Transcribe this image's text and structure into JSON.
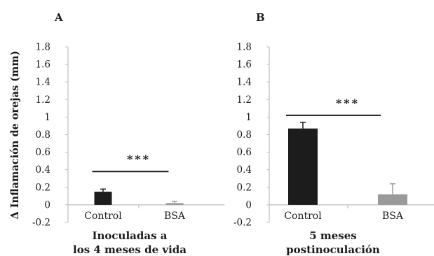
{
  "ylabel": "Δ Inflamación de orejas (mm)",
  "panels": [
    {
      "letter": "A",
      "caption_lines": [
        "Inoculadas a",
        "los 4 meses de vida"
      ],
      "significance": "***"
    },
    {
      "letter": "B",
      "caption_lines": [
        "5 meses",
        "postinoculación"
      ],
      "significance": "***"
    }
  ],
  "colors": {
    "control": "#1c1c1c",
    "bsa": "#9a9a9a",
    "axis": "#bdbdbd",
    "ink": "#1a1a1a"
  },
  "chart_data": [
    {
      "type": "bar",
      "title": "Inoculadas a los 4 meses de vida",
      "categories": [
        "Control",
        "BSA"
      ],
      "values": [
        0.15,
        0.02
      ],
      "errors": [
        0.03,
        0.02
      ],
      "ylabel": "Δ Inflamación de orejas (mm)",
      "yticks": [
        "-0.2",
        "0",
        "0.2",
        "0.4",
        "0.6",
        "0.8",
        "1",
        "1.2",
        "1.4",
        "1.6",
        "1.8"
      ],
      "ylim": [
        -0.2,
        1.8
      ],
      "significance_y": 0.38,
      "grid": false
    },
    {
      "type": "bar",
      "title": "5 meses postinoculación",
      "categories": [
        "Control",
        "BSA"
      ],
      "values": [
        0.87,
        0.12
      ],
      "errors": [
        0.07,
        0.12
      ],
      "yticks": [
        "-0.2",
        "0",
        "0.2",
        "0.4",
        "0.6",
        "0.8",
        "1",
        "1.2",
        "1.4",
        "1.6",
        "1.8"
      ],
      "ylim": [
        -0.2,
        1.8
      ],
      "significance_y": 1.02,
      "grid": false
    }
  ]
}
